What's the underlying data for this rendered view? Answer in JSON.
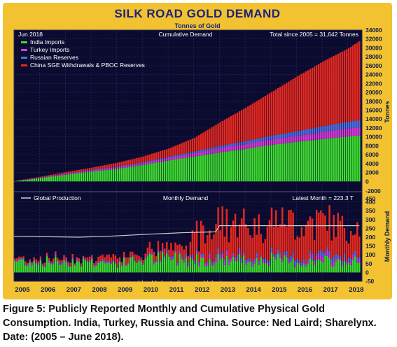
{
  "chart_data": [
    {
      "type": "bar",
      "panel": "top",
      "title": "SILK ROAD GOLD DEMAND",
      "subtitle": "Tonnes of Gold",
      "date_label": "Jun 2018",
      "panel_label": "Cumulative Demand",
      "total_label": "Total since 2005 = 31,642 Tonnes",
      "ylabel": "Tonnes",
      "ylim": [
        0,
        34000
      ],
      "yticks": [
        0,
        2000,
        4000,
        6000,
        8000,
        10000,
        12000,
        14000,
        16000,
        18000,
        20000,
        22000,
        24000,
        26000,
        28000,
        30000,
        32000,
        34000
      ],
      "x_years": [
        "2005",
        "2006",
        "2007",
        "2008",
        "2009",
        "2010",
        "2011",
        "2012",
        "2013",
        "2014",
        "2015",
        "2016",
        "2017",
        "2018"
      ],
      "x": [
        2005.0,
        2006.0,
        2007.0,
        2008.0,
        2009.0,
        2010.0,
        2011.0,
        2012.0,
        2013.0,
        2014.0,
        2015.0,
        2016.0,
        2017.0,
        2018.0,
        2018.45
      ],
      "series": [
        {
          "name": "India Imports",
          "color": "#3ddc2f",
          "values": [
            50,
            750,
            1500,
            2200,
            2800,
            3700,
            4700,
            5600,
            6500,
            7300,
            8200,
            8900,
            9500,
            10100,
            10300
          ]
        },
        {
          "name": "Turkey Imports",
          "color": "#d63ad6",
          "values": [
            20,
            120,
            220,
            330,
            400,
            480,
            600,
            730,
            1000,
            1120,
            1230,
            1330,
            1630,
            1800,
            1850
          ]
        },
        {
          "name": "Russian Reserves",
          "color": "#4f6fe0",
          "values": [
            0,
            20,
            60,
            100,
            130,
            160,
            260,
            380,
            500,
            650,
            850,
            1060,
            1300,
            1520,
            1650
          ]
        },
        {
          "name": "China SGE Withdrawals & PBOC Reserves",
          "color": "#e8281e",
          "values": [
            20,
            160,
            320,
            470,
            870,
            1260,
            1840,
            3090,
            5300,
            7500,
            9800,
            12300,
            14500,
            16500,
            17842
          ]
        }
      ]
    },
    {
      "type": "bar",
      "panel": "bottom",
      "panel_label": "Monthly Demand",
      "latest_label": "Latest Month = 223.3 T",
      "ylabel": "Monthly Demand",
      "ylim": [
        -50,
        450
      ],
      "yticks": [
        -50,
        0,
        50,
        100,
        150,
        200,
        250,
        300,
        350,
        400,
        450
      ],
      "top_extra_tick": "-2000",
      "line_series": {
        "name": "Global Production",
        "color": "#cccccc",
        "x": [
          2005.0,
          2007.5,
          2008.7,
          2010.0,
          2011.5,
          2012.85,
          2013.0,
          2018.45
        ],
        "values": [
          205,
          200,
          205,
          215,
          225,
          230,
          265,
          265
        ]
      },
      "stack_order": [
        "India Imports",
        "Turkey Imports",
        "Russian Reserves",
        "China SGE Withdrawals & PBOC Reserves"
      ],
      "annual_levels": {
        "x": [
          2005,
          2006,
          2007,
          2008,
          2009,
          2010,
          2011,
          2012,
          2013,
          2014,
          2015,
          2016,
          2017,
          2018
        ],
        "India Imports": [
          65,
          60,
          62,
          60,
          50,
          72,
          80,
          75,
          75,
          68,
          75,
          55,
          62,
          60
        ],
        "Turkey Imports": [
          8,
          7,
          8,
          8,
          5,
          6,
          7,
          11,
          25,
          10,
          9,
          9,
          25,
          15
        ],
        "Russian Reserves": [
          2,
          3,
          3,
          3,
          3,
          3,
          8,
          10,
          10,
          13,
          17,
          17,
          20,
          18
        ],
        "China SGE Withdrawals & PBOC Reserves": [
          8,
          12,
          14,
          14,
          30,
          33,
          48,
          105,
          185,
          185,
          190,
          210,
          180,
          175
        ]
      },
      "latest_month_total": 223.3
    }
  ],
  "footer_credit": "world gold charts ® www.goldchartsrus.com",
  "caption": "Figure 5: Publicly Reported Monthly and Cumulative Physical Gold Consumption. India, Turkey, Russia and China. Source: Ned Laird; Sharelynx. Date: (2005 – June 2018)."
}
